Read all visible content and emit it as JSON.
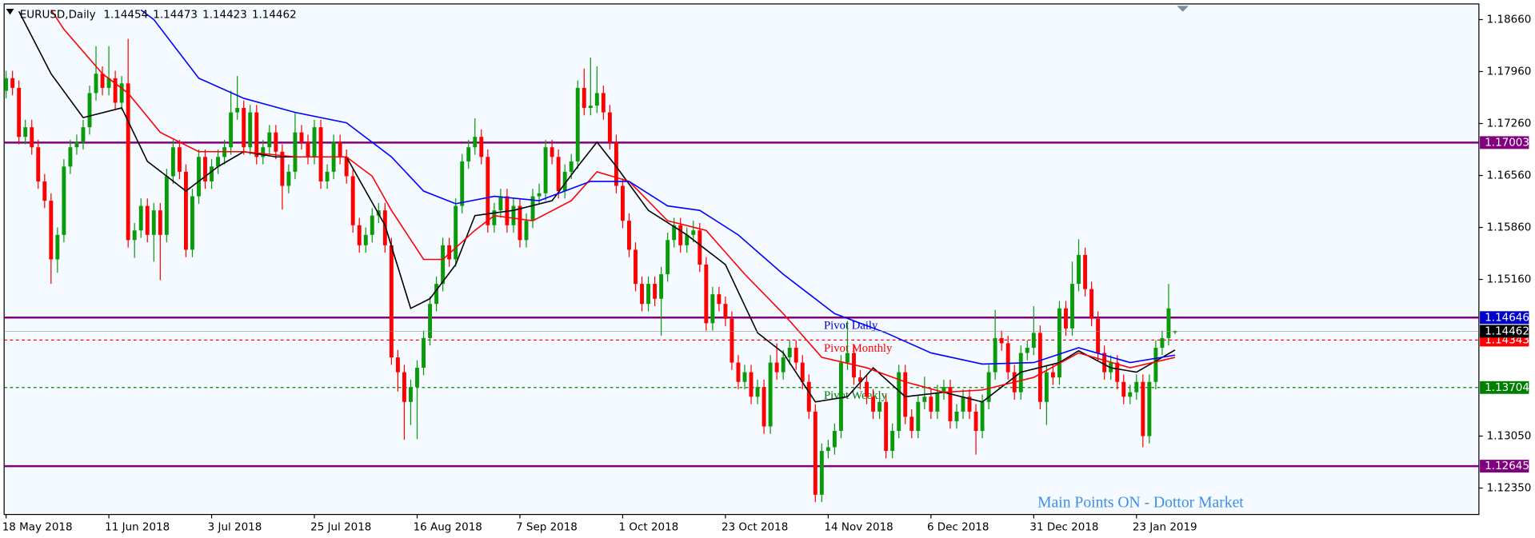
{
  "chart_data": {
    "type": "candlestick",
    "symbol": "EURUSD,Daily",
    "categories": [
      "18 May 2018",
      null,
      null,
      null,
      null,
      null,
      null,
      null,
      null,
      null,
      null,
      null,
      null,
      null,
      null,
      null,
      "11 Jun 2018",
      null,
      null,
      null,
      null,
      null,
      null,
      null,
      null,
      null,
      null,
      null,
      null,
      null,
      null,
      null,
      "3 Jul 2018",
      null,
      null,
      null,
      null,
      null,
      null,
      null,
      null,
      null,
      null,
      null,
      null,
      null,
      null,
      null,
      "25 Jul 2018",
      null,
      null,
      null,
      null,
      null,
      null,
      null,
      null,
      null,
      null,
      null,
      null,
      null,
      null,
      null,
      "16 Aug 2018",
      null,
      null,
      null,
      null,
      null,
      null,
      null,
      null,
      null,
      null,
      null,
      null,
      null,
      null,
      null,
      "7 Sep 2018",
      null,
      null,
      null,
      null,
      null,
      null,
      null,
      null,
      null,
      null,
      null,
      null,
      null,
      null,
      null,
      "1 Oct 2018",
      null,
      null,
      null,
      null,
      null,
      null,
      null,
      null,
      null,
      null,
      null,
      null,
      null,
      null,
      null,
      "23 Oct 2018",
      null,
      null,
      null,
      null,
      null,
      null,
      null,
      null,
      null,
      null,
      null,
      null,
      null,
      null,
      null,
      "14 Nov 2018",
      null,
      null,
      null,
      null,
      null,
      null,
      null,
      null,
      null,
      null,
      null,
      null,
      null,
      null,
      null,
      "6 Dec 2018",
      null,
      null,
      null,
      null,
      null,
      null,
      null,
      null,
      null,
      null,
      null,
      null,
      null,
      null,
      null,
      "31 Dec 2018",
      null,
      null,
      null,
      null,
      null,
      null,
      null,
      null,
      null,
      null,
      null,
      null,
      null,
      null,
      null,
      "23 Jan 2019",
      null,
      null,
      null,
      null,
      null,
      null
    ],
    "open": [
      1.177,
      1.1787,
      1.1774,
      1.1708,
      1.1721,
      1.1694,
      1.1648,
      1.1622,
      1.1543,
      1.1576,
      1.1668,
      1.1694,
      1.1701,
      1.1721,
      1.1767,
      1.1793,
      1.1774,
      1.1787,
      1.1754,
      1.178,
      1.1569,
      1.1582,
      1.1615,
      1.1576,
      1.1609,
      1.1576,
      1.1655,
      1.1694,
      1.1661,
      1.1556,
      1.1628,
      1.1681,
      1.1648,
      1.1668,
      1.1681,
      1.1694,
      1.1741,
      1.1747,
      1.1694,
      1.1741,
      1.1681,
      1.1694,
      1.1714,
      1.1688,
      1.1642,
      1.1661,
      1.1714,
      1.1701,
      1.1681,
      1.1721,
      1.1648,
      1.1661,
      1.1701,
      1.1681,
      1.1655,
      1.1589,
      1.1562,
      1.1576,
      1.1602,
      1.1609,
      1.1562,
      1.1411,
      1.1391,
      1.1351,
      1.1371,
      1.1397,
      1.1437,
      1.1483,
      1.151,
      1.1562,
      1.1543,
      1.1615,
      1.1675,
      1.1694,
      1.1708,
      1.1681,
      1.1589,
      1.1609,
      1.1628,
      1.1589,
      1.1615,
      1.1569,
      1.1595,
      1.1628,
      1.1632,
      1.1694,
      1.1681,
      1.1635,
      1.1661,
      1.1675,
      1.1774,
      1.1747,
      1.175,
      1.1767,
      1.1741,
      1.1701,
      1.1642,
      1.1595,
      1.1556,
      1.151,
      1.1483,
      1.151,
      1.149,
      1.1523,
      1.1569,
      1.1589,
      1.1562,
      1.1576,
      1.1582,
      1.1536,
      1.1457,
      1.1496,
      1.1483,
      1.1463,
      1.1404,
      1.1378,
      1.1391,
      1.1358,
      1.1371,
      1.1318,
      1.1404,
      1.1391,
      1.1411,
      1.1424,
      1.1404,
      1.1378,
      1.1338,
      1.1226,
      1.1285,
      1.129,
      1.1312,
      1.1404,
      1.1417,
      1.1384,
      1.1378,
      1.1358,
      1.1338,
      1.1351,
      1.1285,
      1.1312,
      1.1391,
      1.1331,
      1.1312,
      1.1351,
      1.1358,
      1.1338,
      1.1364,
      1.1371,
      1.1325,
      1.1338,
      1.1358,
      1.1338,
      1.1312,
      1.1351,
      1.1391,
      1.1437,
      1.143,
      1.1391,
      1.1364,
      1.1417,
      1.1424,
      1.1444,
      1.1351,
      1.1391,
      1.1384,
      1.1477,
      1.145,
      1.151,
      1.1549,
      1.1503,
      1.1463,
      1.1417,
      1.1391,
      1.1404,
      1.1378,
      1.1358,
      1.1364,
      1.1378,
      1.1305,
      1.1378,
      1.1424,
      1.1437,
      1.14454
    ],
    "high": [
      1.1797,
      1.1797,
      1.1784,
      1.1731,
      1.1731,
      1.1704,
      1.1658,
      1.1632,
      1.1586,
      1.1678,
      1.1704,
      1.1711,
      1.1731,
      1.1777,
      1.183,
      1.1803,
      1.183,
      1.1797,
      1.179,
      1.184,
      1.1592,
      1.1625,
      1.1625,
      1.1619,
      1.1619,
      1.1665,
      1.1704,
      1.1704,
      1.1671,
      1.1638,
      1.1691,
      1.1691,
      1.1678,
      1.1691,
      1.1704,
      1.177,
      1.179,
      1.1757,
      1.1751,
      1.1751,
      1.1704,
      1.1724,
      1.1724,
      1.1698,
      1.1671,
      1.174,
      1.1724,
      1.1711,
      1.1731,
      1.1731,
      1.1671,
      1.1711,
      1.1711,
      1.1691,
      1.1665,
      1.1599,
      1.1586,
      1.1612,
      1.1619,
      1.1619,
      1.1572,
      1.1421,
      1.1401,
      1.1381,
      1.1407,
      1.1447,
      1.1493,
      1.152,
      1.1572,
      1.1572,
      1.1625,
      1.1685,
      1.1704,
      1.1733,
      1.1718,
      1.1691,
      1.1619,
      1.1638,
      1.1638,
      1.1625,
      1.1625,
      1.1605,
      1.1638,
      1.1645,
      1.1704,
      1.1704,
      1.1691,
      1.1671,
      1.1685,
      1.1784,
      1.18,
      1.1815,
      1.1803,
      1.1777,
      1.1751,
      1.1711,
      1.1652,
      1.1605,
      1.1566,
      1.152,
      1.152,
      1.152,
      1.1533,
      1.1579,
      1.1599,
      1.1599,
      1.1586,
      1.1595,
      1.1592,
      1.1546,
      1.1506,
      1.1506,
      1.1493,
      1.1473,
      1.1414,
      1.1401,
      1.1401,
      1.1381,
      1.1381,
      1.1414,
      1.143,
      1.1421,
      1.1434,
      1.1434,
      1.1414,
      1.1388,
      1.1348,
      1.1295,
      1.13,
      1.1322,
      1.1414,
      1.146,
      1.1427,
      1.1394,
      1.1388,
      1.1368,
      1.1361,
      1.1361,
      1.1322,
      1.1401,
      1.1401,
      1.1341,
      1.1361,
      1.1385,
      1.1368,
      1.1374,
      1.1381,
      1.1381,
      1.1348,
      1.1368,
      1.1368,
      1.1348,
      1.1361,
      1.1401,
      1.1475,
      1.1447,
      1.144,
      1.1401,
      1.1427,
      1.1434,
      1.148,
      1.1454,
      1.1401,
      1.1401,
      1.1487,
      1.1487,
      1.154,
      1.157,
      1.1559,
      1.1513,
      1.1473,
      1.1427,
      1.1414,
      1.1414,
      1.1388,
      1.1374,
      1.1388,
      1.1388,
      1.1388,
      1.1434,
      1.1447,
      1.151,
      1.14473
    ],
    "low": [
      1.176,
      1.1764,
      1.1698,
      1.1698,
      1.1684,
      1.1638,
      1.1612,
      1.151,
      1.1525,
      1.1566,
      1.1658,
      1.1684,
      1.1691,
      1.1711,
      1.1757,
      1.1764,
      1.1764,
      1.1744,
      1.1744,
      1.1559,
      1.1545,
      1.1572,
      1.1566,
      1.154,
      1.1515,
      1.1566,
      1.1645,
      1.1651,
      1.1546,
      1.1546,
      1.1618,
      1.1638,
      1.1638,
      1.1658,
      1.1671,
      1.1684,
      1.1731,
      1.1684,
      1.1684,
      1.1671,
      1.1671,
      1.1684,
      1.1678,
      1.161,
      1.1632,
      1.1651,
      1.1691,
      1.1671,
      1.1671,
      1.1638,
      1.1638,
      1.1651,
      1.1671,
      1.1645,
      1.1579,
      1.1552,
      1.1552,
      1.1566,
      1.1592,
      1.1552,
      1.1401,
      1.1365,
      1.13,
      1.132,
      1.1301,
      1.1387,
      1.1427,
      1.1473,
      1.15,
      1.1533,
      1.1533,
      1.1605,
      1.1665,
      1.1684,
      1.1671,
      1.1579,
      1.1579,
      1.1599,
      1.1579,
      1.1579,
      1.1559,
      1.1559,
      1.1585,
      1.1618,
      1.1622,
      1.1671,
      1.1625,
      1.1625,
      1.1651,
      1.1665,
      1.1737,
      1.1737,
      1.174,
      1.1731,
      1.1691,
      1.1632,
      1.1585,
      1.1546,
      1.15,
      1.1473,
      1.1473,
      1.148,
      1.144,
      1.1513,
      1.1559,
      1.1552,
      1.1552,
      1.1566,
      1.1526,
      1.1447,
      1.1447,
      1.1473,
      1.1453,
      1.1394,
      1.1368,
      1.1368,
      1.1348,
      1.1348,
      1.1308,
      1.1308,
      1.1381,
      1.1381,
      1.1401,
      1.1394,
      1.1368,
      1.1328,
      1.1216,
      1.1216,
      1.1275,
      1.128,
      1.1302,
      1.1394,
      1.1374,
      1.1368,
      1.1348,
      1.1328,
      1.1328,
      1.1275,
      1.1275,
      1.1302,
      1.1321,
      1.1302,
      1.1302,
      1.1341,
      1.1328,
      1.1328,
      1.1354,
      1.1315,
      1.1315,
      1.1328,
      1.1328,
      1.128,
      1.1302,
      1.1341,
      1.1381,
      1.142,
      1.1381,
      1.1354,
      1.1354,
      1.1407,
      1.1414,
      1.1341,
      1.132,
      1.1374,
      1.1374,
      1.144,
      1.144,
      1.15,
      1.1493,
      1.1453,
      1.1407,
      1.1381,
      1.1381,
      1.1368,
      1.1348,
      1.1348,
      1.1354,
      1.129,
      1.1295,
      1.1368,
      1.1414,
      1.1427,
      1.14423
    ],
    "close": [
      1.1787,
      1.1774,
      1.1708,
      1.1721,
      1.1694,
      1.1648,
      1.1622,
      1.1543,
      1.1576,
      1.1668,
      1.1694,
      1.1701,
      1.1721,
      1.1767,
      1.1793,
      1.1774,
      1.1787,
      1.1754,
      1.178,
      1.1569,
      1.1582,
      1.1615,
      1.1576,
      1.1609,
      1.1576,
      1.1655,
      1.1694,
      1.1661,
      1.1556,
      1.1628,
      1.1681,
      1.1648,
      1.1668,
      1.1681,
      1.1694,
      1.1741,
      1.1747,
      1.1694,
      1.1741,
      1.1681,
      1.1694,
      1.1714,
      1.1688,
      1.1642,
      1.1661,
      1.1714,
      1.1701,
      1.1681,
      1.1721,
      1.1648,
      1.1661,
      1.1701,
      1.1681,
      1.1655,
      1.1589,
      1.1562,
      1.1576,
      1.1602,
      1.1609,
      1.1562,
      1.1411,
      1.1391,
      1.1351,
      1.1371,
      1.1397,
      1.1437,
      1.1483,
      1.151,
      1.1562,
      1.1543,
      1.1615,
      1.1675,
      1.1694,
      1.1708,
      1.1681,
      1.1589,
      1.1609,
      1.1628,
      1.1589,
      1.1615,
      1.1569,
      1.1595,
      1.1628,
      1.1632,
      1.1694,
      1.1681,
      1.1635,
      1.1661,
      1.1675,
      1.1774,
      1.1747,
      1.175,
      1.1767,
      1.1741,
      1.1701,
      1.1642,
      1.1595,
      1.1556,
      1.151,
      1.1483,
      1.151,
      1.149,
      1.1523,
      1.1569,
      1.1589,
      1.1562,
      1.1576,
      1.1582,
      1.1536,
      1.1457,
      1.1496,
      1.1483,
      1.1463,
      1.1404,
      1.1378,
      1.1391,
      1.1358,
      1.1371,
      1.1318,
      1.1404,
      1.1391,
      1.1411,
      1.1424,
      1.1404,
      1.1378,
      1.1338,
      1.1226,
      1.1285,
      1.129,
      1.1312,
      1.1404,
      1.1417,
      1.1384,
      1.1378,
      1.1358,
      1.1338,
      1.1351,
      1.1285,
      1.1312,
      1.1391,
      1.1331,
      1.1312,
      1.1351,
      1.1358,
      1.1338,
      1.1364,
      1.1371,
      1.1325,
      1.1338,
      1.1358,
      1.1338,
      1.1312,
      1.1351,
      1.1391,
      1.1437,
      1.143,
      1.1391,
      1.1364,
      1.1417,
      1.1424,
      1.1444,
      1.1351,
      1.1391,
      1.1384,
      1.1477,
      1.145,
      1.151,
      1.1549,
      1.1503,
      1.1463,
      1.1417,
      1.1391,
      1.1404,
      1.1378,
      1.1358,
      1.1364,
      1.1378,
      1.1305,
      1.1378,
      1.1424,
      1.1437,
      1.1477,
      1.14462
    ],
    "up_color": "#0a9b0a",
    "down_color": "#ff0000",
    "ylim": [
      1.11994,
      1.18818
    ],
    "yticks": [
      {
        "value": 1.1866,
        "label": "1.18660"
      },
      {
        "value": 1.1796,
        "label": "1.17960"
      },
      {
        "value": 1.1726,
        "label": "1.17260"
      },
      {
        "value": 1.1656,
        "label": "1.16560"
      },
      {
        "value": 1.1586,
        "label": "1.15860"
      },
      {
        "value": 1.1516,
        "label": "1.15160"
      },
      {
        "value": 1.1305,
        "label": "1.13050"
      },
      {
        "value": 1.1235,
        "label": "1.12350"
      }
    ],
    "overlays": [
      {
        "color": "#000000",
        "x": [
          2,
          7,
          12,
          18,
          22,
          25,
          28,
          33,
          37,
          42,
          45,
          53,
          59,
          63,
          66,
          70,
          73,
          79,
          85,
          89,
          92,
          95,
          100,
          106,
          112,
          117,
          121,
          126,
          131,
          135,
          140,
          146,
          152,
          158,
          164,
          167,
          172,
          176,
          182
        ],
        "values": [
          1.1877,
          1.1793,
          1.1734,
          1.1747,
          1.1675,
          1.1655,
          1.1635,
          1.1668,
          1.1688,
          1.1681,
          1.1681,
          1.1681,
          1.1589,
          1.1477,
          1.149,
          1.1536,
          1.1602,
          1.1609,
          1.1622,
          1.1668,
          1.1701,
          1.1668,
          1.1609,
          1.1576,
          1.1536,
          1.1444,
          1.1417,
          1.1351,
          1.1358,
          1.1397,
          1.1358,
          1.1364,
          1.1351,
          1.1391,
          1.1404,
          1.142,
          1.1397,
          1.1391,
          1.1421
        ]
      },
      {
        "color": "#ff0000",
        "x": [
          7,
          9,
          15,
          19,
          24,
          30,
          37,
          45,
          53,
          57,
          60,
          65,
          68,
          73,
          76,
          82,
          88,
          92,
          97,
          103,
          109,
          115,
          121,
          127,
          134,
          140,
          146,
          152,
          160,
          167,
          175,
          182
        ],
        "values": [
          1.1879,
          1.1853,
          1.1793,
          1.1767,
          1.1714,
          1.1688,
          1.1688,
          1.1681,
          1.1681,
          1.1655,
          1.1609,
          1.1543,
          1.1543,
          1.1582,
          1.1602,
          1.1595,
          1.1622,
          1.1661,
          1.1648,
          1.1595,
          1.1582,
          1.1523,
          1.147,
          1.1411,
          1.1397,
          1.1378,
          1.1364,
          1.1367,
          1.1384,
          1.1417,
          1.1397,
          1.1411
        ]
      },
      {
        "color": "#0000ff",
        "x": [
          21,
          23,
          30,
          37,
          45,
          53,
          60,
          65,
          70,
          76,
          83,
          91,
          97,
          103,
          108,
          114,
          121,
          129,
          137,
          144,
          152,
          160,
          167,
          175,
          182
        ],
        "values": [
          1.1879,
          1.1866,
          1.1787,
          1.176,
          1.1741,
          1.1727,
          1.1681,
          1.1635,
          1.1618,
          1.1628,
          1.1622,
          1.1648,
          1.1648,
          1.1615,
          1.1609,
          1.1576,
          1.1523,
          1.147,
          1.1444,
          1.1417,
          1.1402,
          1.1404,
          1.1424,
          1.1404,
          1.1414
        ]
      }
    ],
    "levels": [
      {
        "value": 1.17003,
        "color": "#800080",
        "tag_color": "#800080"
      },
      {
        "value": 1.14646,
        "color": "#800080",
        "tag_color": "#0000cc",
        "label": "Pivot Daily"
      },
      {
        "value": 1.14343,
        "color": "#ff0000",
        "tag_color": "#ff0000",
        "dash": true,
        "label": "Pivot Monthly"
      },
      {
        "value": 1.13704,
        "color": "#008000",
        "tag_color": "#008000",
        "dash": true,
        "label": "Pivot Weekly"
      },
      {
        "value": 1.12645,
        "color": "#800080",
        "tag_color": "#800080"
      }
    ],
    "watermark": "Main Points ON - Dottor Market"
  }
}
